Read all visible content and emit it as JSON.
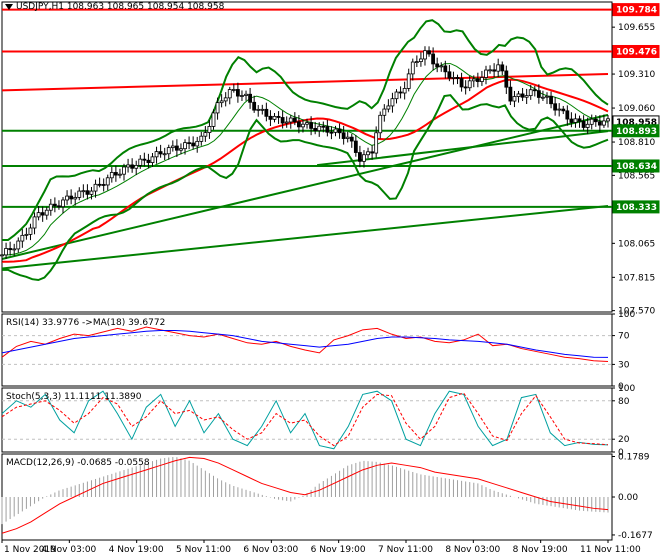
{
  "header": {
    "symbol_timeframe": "USDJPY,H1",
    "ohlc": "108.963 108.965 108.954 108.958"
  },
  "indicators": {
    "rsi": "RSI(14) 33.9776  ->MA(18) 39.6772",
    "stoch": "Stoch(5,3,3) 11.1111 11.3890",
    "macd": "MACD(12,26,9) -0.0685 -0.0558"
  },
  "colors": {
    "candle": "#000000",
    "bollinger": "#008000",
    "horizontal_resistance": "#ff0000",
    "horizontal_support": "#008000",
    "trend_line": "#008000",
    "ma_red": "#ff0000",
    "rsi_line": "#ff0000",
    "rsi_ma": "#0000ff",
    "stoch_main": "#00a0a0",
    "stoch_signal": "#ff0000",
    "macd_hist": "#a0a0a0",
    "macd_signal": "#ff0000",
    "label_bg_green": "#008000",
    "label_bg_red": "#ff0000",
    "label_bg_price": "#ffffff"
  },
  "chart_data": [
    {
      "type": "candlestick",
      "instrument": "USDJPY",
      "timeframe": "H1",
      "ylim": [
        107.56,
        109.84
      ],
      "y_ticks": [
        "109.655",
        "109.310",
        "109.060",
        "108.810",
        "108.565",
        "108.320",
        "108.065",
        "107.815",
        "107.570"
      ],
      "x_ticks": [
        "1 Nov 2019",
        "4 Nov 03:00",
        "4 Nov 19:00",
        "5 Nov 11:00",
        "6 Nov 03:00",
        "6 Nov 19:00",
        "7 Nov 11:00",
        "8 Nov 03:00",
        "8 Nov 19:00",
        "11 Nov 11:00"
      ],
      "price_tags": [
        {
          "value": 109.784,
          "label": "109.784",
          "kind": "red"
        },
        {
          "value": 109.476,
          "label": "109.476",
          "kind": "red"
        },
        {
          "value": 108.958,
          "label": "108.958",
          "kind": "price"
        },
        {
          "value": 108.893,
          "label": "108.893",
          "kind": "green"
        },
        {
          "value": 108.634,
          "label": "108.634",
          "kind": "green"
        },
        {
          "value": 108.333,
          "label": "108.333",
          "kind": "green"
        }
      ],
      "horizontal_levels": [
        {
          "value": 109.784,
          "color": "red"
        },
        {
          "value": 109.476,
          "color": "red"
        },
        {
          "value": 108.893,
          "color": "green"
        },
        {
          "value": 108.634,
          "color": "green"
        },
        {
          "value": 108.333,
          "color": "green"
        }
      ],
      "trend_lines": [
        {
          "from": [
            0,
            107.88
          ],
          "to": [
            1,
            108.34
          ],
          "color": "green"
        },
        {
          "from": [
            0,
            107.95
          ],
          "to": [
            1,
            109.01
          ],
          "color": "green"
        },
        {
          "from": [
            0.52,
            108.64
          ],
          "to": [
            1,
            108.89
          ],
          "color": "green"
        },
        {
          "from": [
            0,
            109.19
          ],
          "to": [
            1,
            109.31
          ],
          "color": "red"
        }
      ],
      "close_path": [
        [
          0,
          107.98
        ],
        [
          0.03,
          108.08
        ],
        [
          0.06,
          108.28
        ],
        [
          0.09,
          108.35
        ],
        [
          0.12,
          108.42
        ],
        [
          0.15,
          108.46
        ],
        [
          0.18,
          108.56
        ],
        [
          0.21,
          108.63
        ],
        [
          0.24,
          108.68
        ],
        [
          0.27,
          108.75
        ],
        [
          0.3,
          108.78
        ],
        [
          0.33,
          108.83
        ],
        [
          0.36,
          109.12
        ],
        [
          0.38,
          109.19
        ],
        [
          0.4,
          109.15
        ],
        [
          0.42,
          109.05
        ],
        [
          0.45,
          108.98
        ],
        [
          0.48,
          108.96
        ],
        [
          0.51,
          108.92
        ],
        [
          0.54,
          108.9
        ],
        [
          0.57,
          108.85
        ],
        [
          0.59,
          108.69
        ],
        [
          0.61,
          108.73
        ],
        [
          0.62,
          108.95
        ],
        [
          0.64,
          109.12
        ],
        [
          0.66,
          109.18
        ],
        [
          0.68,
          109.4
        ],
        [
          0.7,
          109.47
        ],
        [
          0.72,
          109.36
        ],
        [
          0.74,
          109.3
        ],
        [
          0.76,
          109.22
        ],
        [
          0.78,
          109.26
        ],
        [
          0.8,
          109.32
        ],
        [
          0.82,
          109.38
        ],
        [
          0.84,
          109.12
        ],
        [
          0.86,
          109.16
        ],
        [
          0.88,
          109.18
        ],
        [
          0.9,
          109.12
        ],
        [
          0.92,
          109.04
        ],
        [
          0.94,
          108.97
        ],
        [
          0.96,
          108.94
        ],
        [
          0.98,
          108.96
        ],
        [
          1.0,
          108.958
        ]
      ]
    },
    {
      "type": "line",
      "name": "RSI",
      "ylim": [
        0,
        100
      ],
      "y_ticks": [
        "100",
        "70",
        "30",
        "0"
      ],
      "levels": [
        70,
        30
      ],
      "series": [
        {
          "name": "RSI(14)",
          "values": [
            40,
            55,
            62,
            58,
            66,
            72,
            70,
            75,
            80,
            76,
            82,
            78,
            74,
            70,
            68,
            72,
            66,
            60,
            58,
            62,
            55,
            50,
            46,
            64,
            70,
            78,
            80,
            72,
            66,
            68,
            62,
            60,
            64,
            72,
            56,
            58,
            52,
            48,
            44,
            40,
            38,
            35,
            34
          ]
        },
        {
          "name": "MA(18)",
          "values": [
            46,
            50,
            54,
            58,
            62,
            66,
            68,
            70,
            72,
            74,
            76,
            77,
            77,
            76,
            74,
            72,
            70,
            66,
            62,
            60,
            58,
            56,
            54,
            56,
            58,
            62,
            66,
            68,
            68,
            67,
            66,
            64,
            63,
            62,
            60,
            58,
            54,
            50,
            47,
            44,
            42,
            40,
            39.7
          ]
        }
      ]
    },
    {
      "type": "line",
      "name": "Stochastic",
      "ylim": [
        0,
        100
      ],
      "y_ticks": [
        "100",
        "80",
        "20",
        "0"
      ],
      "levels": [
        80,
        20
      ],
      "series": [
        {
          "name": "%K",
          "values": [
            60,
            80,
            70,
            90,
            50,
            30,
            80,
            95,
            60,
            20,
            70,
            90,
            40,
            80,
            30,
            60,
            20,
            10,
            40,
            80,
            30,
            60,
            10,
            5,
            40,
            90,
            95,
            80,
            20,
            10,
            60,
            95,
            90,
            40,
            10,
            20,
            85,
            90,
            30,
            10,
            15,
            12,
            11.1
          ]
        },
        {
          "name": "%D",
          "values": [
            55,
            70,
            75,
            80,
            65,
            45,
            60,
            85,
            75,
            40,
            55,
            80,
            60,
            65,
            50,
            55,
            35,
            20,
            30,
            60,
            45,
            50,
            25,
            10,
            25,
            70,
            90,
            88,
            45,
            20,
            40,
            85,
            92,
            60,
            25,
            18,
            60,
            88,
            55,
            20,
            14,
            13,
            11.4
          ]
        }
      ]
    },
    {
      "type": "bar",
      "name": "MACD",
      "ylim": [
        -0.19,
        0.19
      ],
      "y_ticks": [
        "0.1789",
        "0.00",
        "-0.1677"
      ],
      "series": [
        {
          "name": "MACD",
          "values": [
            -0.12,
            -0.08,
            -0.04,
            0.0,
            0.03,
            0.05,
            0.07,
            0.09,
            0.11,
            0.13,
            0.15,
            0.17,
            0.178,
            0.16,
            0.12,
            0.08,
            0.05,
            0.03,
            0.01,
            -0.01,
            -0.02,
            0.01,
            0.06,
            0.1,
            0.14,
            0.16,
            0.155,
            0.14,
            0.12,
            0.1,
            0.09,
            0.08,
            0.07,
            0.06,
            0.03,
            0.01,
            -0.01,
            -0.03,
            -0.04,
            -0.05,
            -0.06,
            -0.065,
            -0.0685
          ]
        },
        {
          "name": "Signal",
          "values": [
            -0.16,
            -0.14,
            -0.11,
            -0.07,
            -0.03,
            0.0,
            0.03,
            0.06,
            0.08,
            0.1,
            0.12,
            0.14,
            0.16,
            0.175,
            0.17,
            0.15,
            0.12,
            0.09,
            0.06,
            0.04,
            0.02,
            0.01,
            0.03,
            0.06,
            0.09,
            0.12,
            0.14,
            0.15,
            0.14,
            0.13,
            0.11,
            0.1,
            0.09,
            0.08,
            0.06,
            0.04,
            0.02,
            0.0,
            -0.02,
            -0.03,
            -0.04,
            -0.05,
            -0.0558
          ]
        }
      ]
    }
  ]
}
